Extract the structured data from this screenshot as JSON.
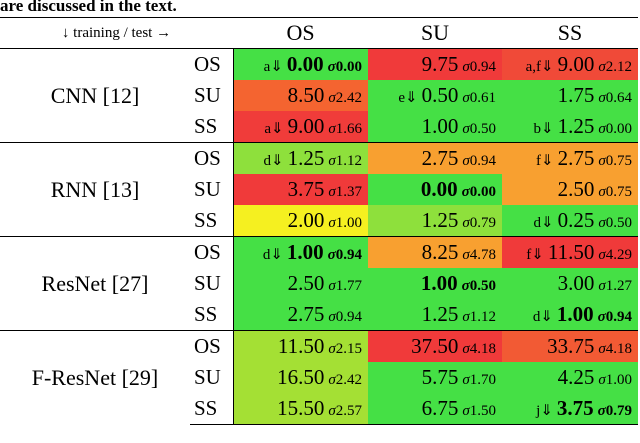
{
  "caption": "are discussed in the text.",
  "table": {
    "corner": "↓ training / test →",
    "columns": [
      "OS",
      "SU",
      "SS"
    ],
    "groups": [
      {
        "name": "CNN [12]",
        "rows": [
          {
            "label": "OS",
            "cells": [
              {
                "note": "a⇓",
                "value": "0.00",
                "sigma": "σ0.00",
                "bold": true,
                "color": "#45e045"
              },
              {
                "value": "9.75",
                "sigma": "σ0.94",
                "color": "#f03a3a"
              },
              {
                "note": "a,f⇓",
                "value": "9.00",
                "sigma": "σ2.12",
                "color": "#f04a38"
              }
            ]
          },
          {
            "label": "SU",
            "cells": [
              {
                "value": "8.50",
                "sigma": "σ2.42",
                "color": "#f46430"
              },
              {
                "note": "e⇓",
                "value": "0.50",
                "sigma": "σ0.61",
                "color": "#45e045"
              },
              {
                "value": "1.75",
                "sigma": "σ0.64",
                "color": "#45e045"
              }
            ]
          },
          {
            "label": "SS",
            "cells": [
              {
                "note": "a⇓",
                "value": "9.00",
                "sigma": "σ1.66",
                "color": "#f03c3a"
              },
              {
                "value": "1.00",
                "sigma": "σ0.50",
                "color": "#45e045"
              },
              {
                "note": "b⇓",
                "value": "1.25",
                "sigma": "σ0.00",
                "color": "#45e045"
              }
            ]
          }
        ]
      },
      {
        "name": "RNN [13]",
        "rows": [
          {
            "label": "OS",
            "cells": [
              {
                "note": "d⇓",
                "value": "1.25",
                "sigma": "σ1.12",
                "color": "#8ee03c"
              },
              {
                "value": "2.75",
                "sigma": "σ0.94",
                "color": "#f8a030"
              },
              {
                "note": "f⇓",
                "value": "2.75",
                "sigma": "σ0.75",
                "color": "#f8a030"
              }
            ]
          },
          {
            "label": "SU",
            "cells": [
              {
                "value": "3.75",
                "sigma": "σ1.37",
                "color": "#f03a3a"
              },
              {
                "value": "0.00",
                "sigma": "σ0.00",
                "bold": true,
                "color": "#45e045"
              },
              {
                "value": "2.50",
                "sigma": "σ0.75",
                "color": "#f8a030"
              }
            ]
          },
          {
            "label": "SS",
            "cells": [
              {
                "value": "2.00",
                "sigma": "σ1.00",
                "color": "#f5f020"
              },
              {
                "value": "1.25",
                "sigma": "σ0.79",
                "color": "#8ee03c"
              },
              {
                "note": "d⇓",
                "value": "0.25",
                "sigma": "σ0.50",
                "color": "#45e045"
              }
            ]
          }
        ]
      },
      {
        "name": "ResNet [27]",
        "rows": [
          {
            "label": "OS",
            "cells": [
              {
                "note": "d⇓",
                "value": "1.00",
                "sigma": "σ0.94",
                "bold": true,
                "color": "#45e045"
              },
              {
                "value": "8.25",
                "sigma": "σ4.78",
                "color": "#f8a030"
              },
              {
                "note": "f⇓",
                "value": "11.50",
                "sigma": "σ4.29",
                "color": "#f03a3a"
              }
            ]
          },
          {
            "label": "SU",
            "cells": [
              {
                "value": "2.50",
                "sigma": "σ1.77",
                "color": "#45e045"
              },
              {
                "value": "1.00",
                "sigma": "σ0.50",
                "bold": true,
                "color": "#45e045"
              },
              {
                "value": "3.00",
                "sigma": "σ1.27",
                "color": "#45e045"
              }
            ]
          },
          {
            "label": "SS",
            "cells": [
              {
                "value": "2.75",
                "sigma": "σ0.94",
                "color": "#45e045"
              },
              {
                "value": "1.25",
                "sigma": "σ1.12",
                "color": "#45e045"
              },
              {
                "note": "d⇓",
                "value": "1.00",
                "sigma": "σ0.94",
                "bold": true,
                "color": "#45e045"
              }
            ]
          }
        ]
      },
      {
        "name": "F-ResNet [29]",
        "rows": [
          {
            "label": "OS",
            "cells": [
              {
                "value": "11.50",
                "sigma": "σ2.15",
                "color": "#a4e034"
              },
              {
                "value": "37.50",
                "sigma": "σ4.18",
                "color": "#f03a3a"
              },
              {
                "value": "33.75",
                "sigma": "σ4.18",
                "color": "#f25a34"
              }
            ]
          },
          {
            "label": "SU",
            "cells": [
              {
                "value": "16.50",
                "sigma": "σ2.42",
                "color": "#a4e034"
              },
              {
                "value": "5.75",
                "sigma": "σ1.70",
                "color": "#45e045"
              },
              {
                "value": "4.25",
                "sigma": "σ1.00",
                "color": "#45e045"
              }
            ]
          },
          {
            "label": "SS",
            "cells": [
              {
                "value": "15.50",
                "sigma": "σ2.57",
                "color": "#a4e034"
              },
              {
                "value": "6.75",
                "sigma": "σ1.50",
                "color": "#45e045"
              },
              {
                "note": "j⇓",
                "value": "3.75",
                "sigma": "σ0.79",
                "bold": true,
                "color": "#45e045"
              }
            ]
          }
        ]
      }
    ]
  }
}
